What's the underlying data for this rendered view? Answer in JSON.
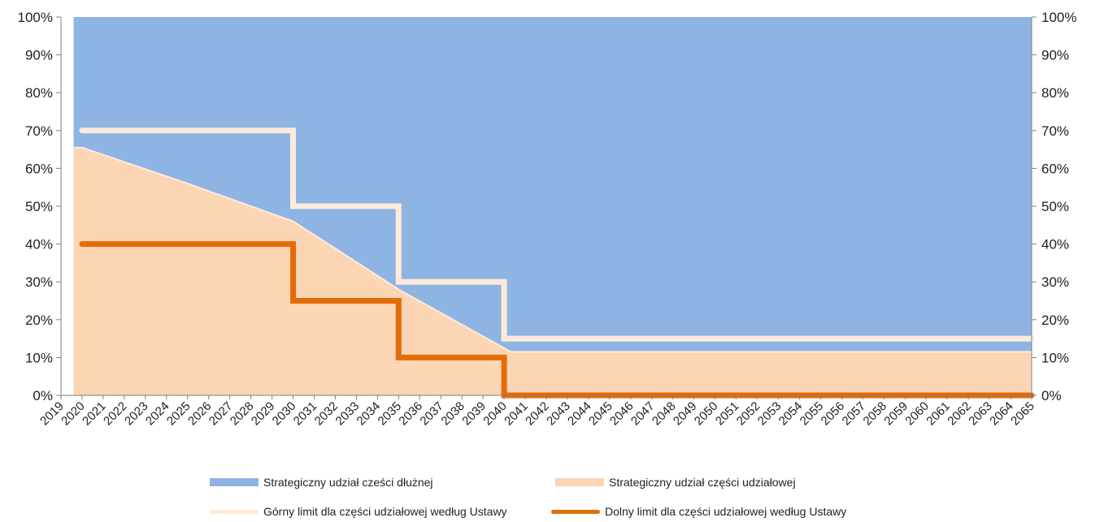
{
  "chart_data": {
    "type": "area",
    "x_start": 2019,
    "x_end": 2065,
    "x_ticks": [
      "2019",
      "2020",
      "2021",
      "2022",
      "2023",
      "2024",
      "2025",
      "2026",
      "2027",
      "2028",
      "2029",
      "2030",
      "2031",
      "2032",
      "2033",
      "2034",
      "2035",
      "2036",
      "2037",
      "2038",
      "2039",
      "2040",
      "2041",
      "2042",
      "2043",
      "2044",
      "2045",
      "2046",
      "2047",
      "2048",
      "2049",
      "2050",
      "2051",
      "2052",
      "2053",
      "2054",
      "2055",
      "2056",
      "2057",
      "2058",
      "2059",
      "2060",
      "2061",
      "2062",
      "2063",
      "2064",
      "2065"
    ],
    "y_ticks": [
      "0%",
      "10%",
      "20%",
      "30%",
      "40%",
      "50%",
      "60%",
      "70%",
      "80%",
      "90%",
      "100%"
    ],
    "ylim": [
      0,
      100
    ],
    "series": [
      {
        "name": "Strategiczny udział cześci dłużnej",
        "kind": "area-top",
        "color": "#8eb4e3",
        "x": [
          2019.6,
          2065
        ],
        "y": [
          100,
          100
        ]
      },
      {
        "name": "Strategiczny udział części udziałowej",
        "kind": "area",
        "color": "#fcd5b5",
        "x": [
          2019.6,
          2020,
          2025,
          2030,
          2035,
          2040,
          2040.3,
          2065
        ],
        "y": [
          65.5,
          65.5,
          56,
          46,
          28,
          12.5,
          11.5,
          11.5
        ]
      },
      {
        "name": "Górny limit dla części udziałowej według Ustawy",
        "kind": "line",
        "color": "#fdeada",
        "x": [
          2020,
          2030,
          2030,
          2035,
          2035,
          2040,
          2040,
          2065
        ],
        "y": [
          70,
          70,
          50,
          50,
          30,
          30,
          15,
          15
        ]
      },
      {
        "name": "Dolny limit dla części udziałowej według Ustawy",
        "kind": "line",
        "color": "#e36c09",
        "x": [
          2020,
          2030,
          2030,
          2035,
          2035,
          2040,
          2040,
          2065
        ],
        "y": [
          40,
          40,
          25,
          25,
          10,
          10,
          0,
          0
        ]
      }
    ],
    "legend": {
      "position": "bottom",
      "debt_label": "Strategiczny udział cześci dłużnej",
      "equity_label": "Strategiczny udział części udziałowej",
      "upper_label": "Górny limit dla części udziałowej według Ustawy",
      "lower_label": "Dolny limit dla części udziałowej według Ustawy"
    },
    "grid": false
  }
}
